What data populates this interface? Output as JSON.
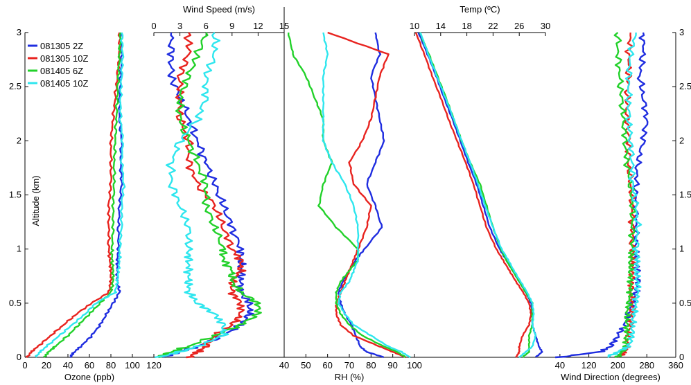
{
  "chart_data": {
    "type": "line",
    "shared_y": {
      "label": "Altitude (km)",
      "range": [
        0,
        3
      ],
      "ticks": [
        "0",
        "0.5",
        "1",
        "1.5",
        "2",
        "2.5",
        "3"
      ]
    },
    "legend": {
      "placement": "top-left",
      "entries": [
        {
          "label": "081305 2Z",
          "color": "#1f2de0"
        },
        {
          "label": "081305 10Z",
          "color": "#e8231f"
        },
        {
          "label": "081405 6Z",
          "color": "#22d12a"
        },
        {
          "label": "081405 10Z",
          "color": "#2ee6ee"
        }
      ]
    },
    "series_colors": [
      "#1f2de0",
      "#e8231f",
      "#22d12a",
      "#2ee6ee"
    ],
    "altitudes": [
      0,
      0.05,
      0.1,
      0.2,
      0.3,
      0.4,
      0.5,
      0.6,
      0.7,
      0.8,
      0.9,
      1.0,
      1.2,
      1.4,
      1.6,
      1.8,
      2.0,
      2.2,
      2.4,
      2.6,
      2.8,
      3.0
    ],
    "panels": [
      {
        "id": "ozone",
        "xlabel": "Ozone (ppb)",
        "axis_position": "bottom",
        "xlim": [
          0,
          120
        ],
        "ticks": [
          "0",
          "20",
          "40",
          "60",
          "80",
          "100",
          "120"
        ],
        "series": [
          {
            "values": [
              42,
              46,
              52,
              62,
              70,
              76,
              82,
              88,
              86,
              86,
              86,
              87,
              87,
              88,
              90,
              89,
              90,
              88,
              88,
              89,
              90,
              89
            ]
          },
          {
            "values": [
              2,
              6,
              12,
              24,
              36,
              48,
              62,
              78,
              80,
              80,
              79,
              78,
              78,
              78,
              80,
              80,
              80,
              82,
              84,
              86,
              88,
              88
            ]
          },
          {
            "values": [
              18,
              22,
              28,
              40,
              50,
              60,
              70,
              80,
              82,
              82,
              81,
              81,
              82,
              82,
              83,
              83,
              84,
              85,
              86,
              87,
              88,
              89
            ]
          },
          {
            "values": [
              10,
              14,
              20,
              32,
              44,
              56,
              66,
              84,
              86,
              87,
              88,
              88,
              90,
              90,
              92,
              90,
              91,
              89,
              89,
              90,
              91,
              90
            ]
          }
        ]
      },
      {
        "id": "wind-speed",
        "xlabel": "Wind Speed (m/s)",
        "axis_position": "top",
        "xlim": [
          0,
          15
        ],
        "ticks": [
          "0",
          "3",
          "6",
          "9",
          "12",
          "15"
        ],
        "series": [
          {
            "values": [
              1,
              3,
              5,
              8,
              10,
              11,
              11,
              10,
              10,
              10,
              10,
              10,
              9,
              8,
              7,
              6,
              5,
              4,
              3,
              2,
              2,
              2
            ]
          },
          {
            "values": [
              4,
              5,
              6,
              7,
              9,
              10,
              10,
              9,
              9,
              10,
              10,
              9,
              8,
              7,
              5,
              4,
              4,
              3,
              3,
              3,
              4,
              4
            ]
          },
          {
            "values": [
              0.5,
              2,
              4,
              7,
              10,
              12,
              12,
              10,
              9,
              9,
              8,
              8,
              7,
              6,
              6,
              5,
              4,
              3,
              3,
              4,
              5,
              6
            ]
          },
          {
            "values": [
              0.5,
              3,
              5,
              8,
              8,
              7,
              5,
              4,
              4,
              4,
              4,
              4,
              4,
              3,
              2,
              2,
              3,
              5,
              6,
              6,
              7,
              7
            ]
          }
        ]
      },
      {
        "id": "rh",
        "xlabel": "RH (%)",
        "axis_position": "bottom",
        "xlim": [
          40,
          100
        ],
        "ticks": [
          "40",
          "50",
          "60",
          "70",
          "80",
          "90",
          "100"
        ],
        "series": [
          {
            "values": [
              86,
              78,
              75,
              73,
              71,
              68,
              66,
              65,
              67,
              70,
              73,
              77,
              85,
              82,
              78,
              82,
              86,
              84,
              82,
              80,
              84,
              82
            ]
          },
          {
            "values": [
              96,
              90,
              84,
              72,
              66,
              64,
              64,
              66,
              68,
              70,
              72,
              74,
              78,
              80,
              72,
              70,
              76,
              80,
              82,
              84,
              88,
              60
            ]
          },
          {
            "values": [
              96,
              92,
              86,
              76,
              70,
              66,
              64,
              64,
              66,
              70,
              74,
              74,
              64,
              56,
              58,
              62,
              58,
              58,
              54,
              50,
              44,
              42
            ]
          },
          {
            "values": [
              98,
              94,
              88,
              80,
              72,
              68,
              65,
              66,
              70,
              72,
              74,
              74,
              74,
              72,
              68,
              62,
              58,
              58,
              58,
              58,
              60,
              58
            ]
          }
        ]
      },
      {
        "id": "temp",
        "xlabel": "Temp (ºC)",
        "axis_position": "top",
        "xlim": [
          10,
          30
        ],
        "ticks": [
          "10",
          "14",
          "18",
          "22",
          "26",
          "30"
        ],
        "series": [
          {
            "values": [
              28.5,
              29.5,
              29,
              28.5,
              28,
              28,
              27.8,
              27,
              26,
              25,
              24,
              23,
              21.5,
              20.5,
              19.5,
              18.2,
              17,
              15.8,
              14.5,
              13.3,
              12,
              10.6
            ]
          },
          {
            "values": [
              25.5,
              26,
              26,
              26.5,
              27.5,
              27.8,
              27.5,
              26.6,
              25.5,
              24.5,
              23.5,
              22.5,
              21,
              20,
              19,
              17.8,
              16.5,
              15.2,
              14,
              12.7,
              11.5,
              10.2
            ]
          },
          {
            "values": [
              26.5,
              27.5,
              27.5,
              27.5,
              28,
              28,
              28,
              27,
              26,
              25,
              24,
              23.2,
              22,
              21,
              20,
              18.5,
              17.2,
              16,
              14.8,
              13.5,
              12.2,
              10.8
            ]
          },
          {
            "values": [
              26,
              27,
              28,
              28.5,
              28,
              28.2,
              28,
              27.2,
              26.2,
              25.2,
              24.3,
              23.3,
              22,
              20.8,
              19.7,
              18.5,
              17.2,
              16,
              14.7,
              13.4,
              12.1,
              10.9
            ]
          }
        ]
      },
      {
        "id": "wind-direction",
        "xlabel": "Wind Direction (degrees)",
        "axis_position": "bottom",
        "xlim": [
          0,
          360
        ],
        "ticks": [
          "40",
          "120",
          "200",
          "280",
          "360"
        ],
        "series": [
          {
            "values": [
              35,
              150,
              180,
              200,
              220,
              230,
              240,
              250,
              255,
              255,
              250,
              250,
              250,
              250,
              250,
              255,
              270,
              280,
              270,
              260,
              270,
              270
            ]
          },
          {
            "values": [
              200,
              220,
              225,
              230,
              235,
              240,
              240,
              235,
              240,
              240,
              240,
              240,
              240,
              240,
              235,
              230,
              230,
              225,
              225,
              230,
              230,
              235
            ]
          },
          {
            "values": [
              200,
              210,
              220,
              225,
              225,
              225,
              230,
              235,
              235,
              235,
              235,
              240,
              240,
              240,
              235,
              225,
              220,
              215,
              210,
              205,
              200,
              200
            ]
          },
          {
            "values": [
              170,
              200,
              230,
              240,
              240,
              245,
              250,
              255,
              255,
              250,
              255,
              250,
              255,
              250,
              240,
              240,
              235,
              230,
              230,
              230,
              235,
              250
            ]
          }
        ]
      }
    ]
  }
}
